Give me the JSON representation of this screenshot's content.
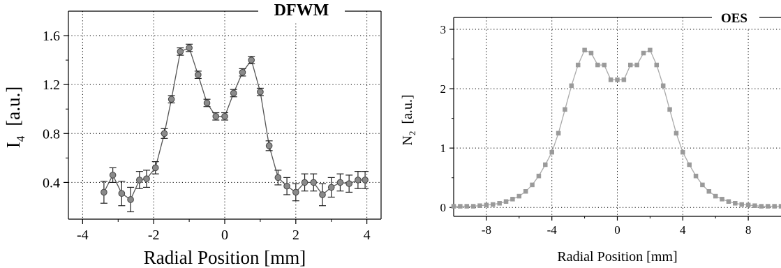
{
  "chart_data": [
    {
      "id": "dfwm",
      "type": "line",
      "title": "DFWM",
      "xlabel": "Radial Position  [mm]",
      "ylabel_main": "I",
      "ylabel_sub": "4",
      "ylabel_unit": "[a.u.]",
      "xlim": [
        -4.4,
        4.4
      ],
      "ylim": [
        0.1,
        1.8
      ],
      "xticks": [
        {
          "value": -4,
          "label": "-4"
        },
        {
          "value": -2,
          "label": "-2"
        },
        {
          "value": 0,
          "label": "0"
        },
        {
          "value": 2,
          "label": "2"
        },
        {
          "value": 4,
          "label": "4"
        }
      ],
      "yticks": [
        {
          "value": 0.4,
          "label": "0.4"
        },
        {
          "value": 0.8,
          "label": "0.8"
        },
        {
          "value": 1.2,
          "label": "1.2"
        },
        {
          "value": 1.6,
          "label": "1.6"
        }
      ],
      "grid": true,
      "marker": "circle",
      "error_bars": true,
      "series": [
        {
          "x": [
            -3.4,
            -3.15,
            -2.9,
            -2.65,
            -2.4,
            -2.2,
            -1.95,
            -1.7,
            -1.5,
            -1.25,
            -1.0,
            -0.75,
            -0.5,
            -0.25,
            0.0,
            0.25,
            0.5,
            0.75,
            1.0,
            1.25,
            1.5,
            1.75,
            2.0,
            2.25,
            2.5,
            2.75,
            3.0,
            3.25,
            3.5,
            3.75,
            3.95
          ],
          "y": [
            0.32,
            0.46,
            0.31,
            0.26,
            0.42,
            0.43,
            0.52,
            0.8,
            1.08,
            1.47,
            1.5,
            1.28,
            1.05,
            0.94,
            0.94,
            1.13,
            1.3,
            1.4,
            1.14,
            0.7,
            0.44,
            0.37,
            0.32,
            0.4,
            0.4,
            0.3,
            0.36,
            0.4,
            0.39,
            0.42,
            0.42
          ],
          "err": [
            0.09,
            0.06,
            0.1,
            0.1,
            0.07,
            0.07,
            0.05,
            0.04,
            0.03,
            0.03,
            0.03,
            0.03,
            0.03,
            0.03,
            0.03,
            0.03,
            0.03,
            0.03,
            0.03,
            0.04,
            0.06,
            0.07,
            0.07,
            0.07,
            0.07,
            0.09,
            0.08,
            0.07,
            0.07,
            0.07,
            0.07
          ]
        }
      ]
    },
    {
      "id": "oes",
      "type": "line",
      "title": "OES",
      "xlabel": "Radial Position  [mm]",
      "ylabel_main": "N",
      "ylabel_sub": "2",
      "ylabel_unit": "[a.u.]",
      "xlim": [
        -10,
        10
      ],
      "ylim": [
        -0.15,
        3.2
      ],
      "xticks": [
        {
          "value": -8,
          "label": "-8"
        },
        {
          "value": -4,
          "label": "-4"
        },
        {
          "value": 0,
          "label": "0"
        },
        {
          "value": 4,
          "label": "4"
        },
        {
          "value": 8,
          "label": "8"
        }
      ],
      "yticks": [
        {
          "value": 0,
          "label": "0"
        },
        {
          "value": 1,
          "label": "1"
        },
        {
          "value": 2,
          "label": "2"
        },
        {
          "value": 3,
          "label": "3"
        }
      ],
      "grid": true,
      "marker": "square",
      "series": [
        {
          "x": [
            -10.0,
            -9.6,
            -9.2,
            -8.8,
            -8.4,
            -8.0,
            -7.6,
            -7.2,
            -6.8,
            -6.4,
            -6.0,
            -5.6,
            -5.2,
            -4.8,
            -4.4,
            -4.0,
            -3.6,
            -3.2,
            -2.8,
            -2.4,
            -2.0,
            -1.6,
            -1.2,
            -0.8,
            -0.4,
            0.0,
            0.4,
            0.8,
            1.2,
            1.6,
            2.0,
            2.4,
            2.8,
            3.2,
            3.6,
            4.0,
            4.4,
            4.8,
            5.2,
            5.6,
            6.0,
            6.4,
            6.8,
            7.2,
            7.6,
            8.0,
            8.4,
            8.8,
            9.2,
            9.6,
            10.0
          ],
          "y": [
            0.02,
            0.02,
            0.02,
            0.02,
            0.03,
            0.04,
            0.05,
            0.07,
            0.1,
            0.14,
            0.19,
            0.27,
            0.38,
            0.53,
            0.72,
            0.93,
            1.25,
            1.65,
            2.05,
            2.4,
            2.65,
            2.6,
            2.4,
            2.4,
            2.15,
            2.15,
            2.15,
            2.4,
            2.4,
            2.6,
            2.65,
            2.4,
            2.05,
            1.65,
            1.25,
            0.93,
            0.72,
            0.53,
            0.38,
            0.27,
            0.19,
            0.14,
            0.1,
            0.07,
            0.05,
            0.04,
            0.03,
            0.02,
            0.02,
            0.02,
            0.02
          ]
        }
      ]
    }
  ]
}
